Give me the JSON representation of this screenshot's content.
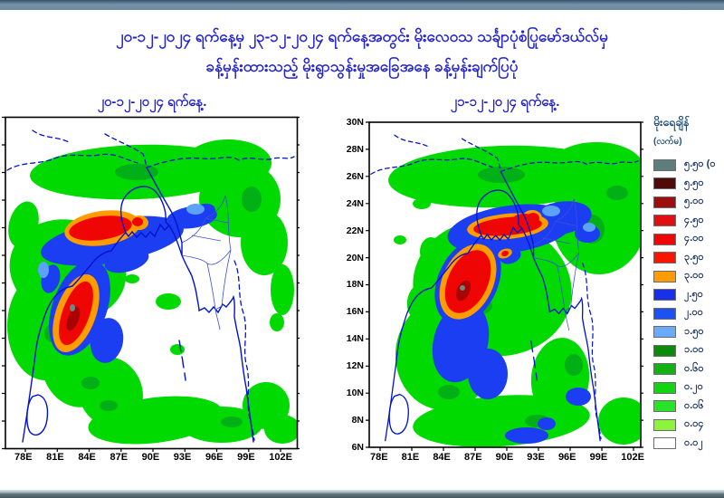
{
  "title": {
    "line1": "၂၀-၁၂-၂၀၂၄ ရက်နေ့မှ ၂၃-၁၂-၂၀၂၄ ရက်နေ့အတွင်း မိုးလေဝသ သင်္ချာပုံစံပြုမော်ဒယ်လ်မှ",
    "line2": "ခန့်မှန်းထားသည့် မိုးရွာသွန်းမှုအခြေအနေ ခန့်မှန်းချက်ပြပုံ",
    "color": "#2424cd"
  },
  "maps": {
    "left": {
      "title": "၂၀-၁၂-၂၀၂၄ ရက်နေ့.",
      "date": "20-12-2024"
    },
    "right": {
      "title": "၂၁-၁၂-၂၀၂၄ ရက်နေ့.",
      "date": "21-12-2024"
    },
    "x_ticks": [
      "78E",
      "81E",
      "84E",
      "87E",
      "90E",
      "93E",
      "96E",
      "99E",
      "102E"
    ],
    "y_ticks": [
      "30N",
      "28N",
      "26N",
      "24N",
      "22N",
      "20N",
      "18N",
      "16N",
      "14N",
      "12N",
      "10N",
      "8N",
      "6N"
    ]
  },
  "legend": {
    "title": "မိုးရေချိန်",
    "unit": "(လက်မ)",
    "entries": [
      {
        "label": "၅.၅၀ (၀",
        "value": "5.50 (and above)",
        "color": "#5c7f7d"
      },
      {
        "label": "၅.၅၀",
        "value": "5.50",
        "color": "#4f0a0a"
      },
      {
        "label": "၅.၀၀",
        "value": "5.00",
        "color": "#9d0e0e"
      },
      {
        "label": "၄.၅၀",
        "value": "4.50",
        "color": "#e11010"
      },
      {
        "label": "၄.၀၀",
        "value": "4.00",
        "color": "#ef0505"
      },
      {
        "label": "၃.၅၀",
        "value": "3.50",
        "color": "#fb1500"
      },
      {
        "label": "၃.၀၀",
        "value": "3.00",
        "color": "#ff9d00"
      },
      {
        "label": "၂.၅၀",
        "value": "2.50",
        "color": "#1a2fe8"
      },
      {
        "label": "၂.၀၀",
        "value": "2.00",
        "color": "#1d52f2"
      },
      {
        "label": "၁.၅၀",
        "value": "1.50",
        "color": "#6aaaf8"
      },
      {
        "label": "၁.၀၀",
        "value": "1.00",
        "color": "#0c8a0c"
      },
      {
        "label": "၀.၆၀",
        "value": "0.60",
        "color": "#12b212"
      },
      {
        "label": "၀.၂၀",
        "value": "0.20",
        "color": "#12d412"
      },
      {
        "label": "၀.၀၆",
        "value": "0.06",
        "color": "#27e427"
      },
      {
        "label": "၀.၀၄",
        "value": "0.04",
        "color": "#8ef33c"
      },
      {
        "label": "၀.၀၂",
        "value": "0.02",
        "color": "#ffffff"
      }
    ]
  },
  "chart_data": {
    "type": "map",
    "subtype": "precipitation-forecast",
    "extent": {
      "lon_ticks": [
        "78E",
        "81E",
        "84E",
        "87E",
        "90E",
        "93E",
        "96E",
        "99E",
        "102E"
      ],
      "lat_ticks": [
        "30N",
        "28N",
        "26N",
        "24N",
        "22N",
        "20N",
        "18N",
        "16N",
        "14N",
        "12N",
        "10N",
        "8N",
        "6N"
      ]
    },
    "unit": "inches (လက်မ)",
    "panels": [
      {
        "date": "20-12-2024",
        "features": [
          "heavy-rain core >5.0in elongated band near 84-89E / 21-23N with orange fringe",
          "second heavy core >5.0in oriented NE-SW near 82-85E / 16-19N with small gray >5.50 speck",
          "blue 2.0-2.5in band arcs from lower core northeast toward 95E / 23N",
          "broad green 0.2-1.0in comma-shaped shield over Bay of Bengal, Himalayan foothills and Myanmar"
        ]
      },
      {
        "date": "21-12-2024",
        "features": [
          "jagged red band >5.0in near 87-91E / 22-23N along Bangladesh border",
          "large red core >5.0in near 85-88E / 17.5-20.5N with gray >5.50 speck",
          "extensive blue 2.0-2.5in envelope around cores extending southwest",
          "very widespread green 0.2-1.0in coverage over Bay of Bengal, Bangladesh, Myanmar and Thailand"
        ]
      }
    ]
  }
}
